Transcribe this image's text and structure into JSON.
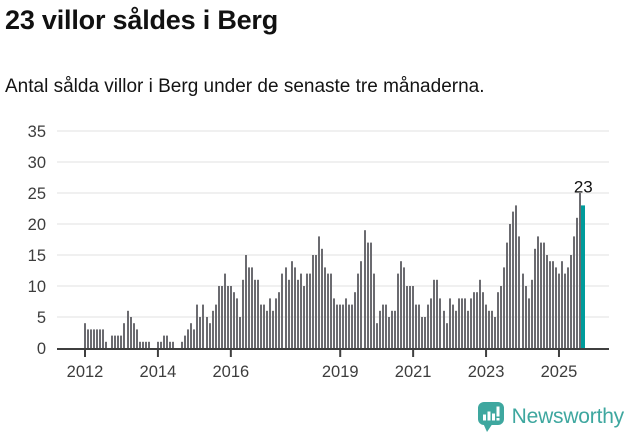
{
  "header": {},
  "chart_data": {
    "type": "bar",
    "title": "23 villor såldes i Berg",
    "subtitle": "Antal sålda villor i Berg under de senaste tre månaderna.",
    "frequency": "monthly",
    "start": "2012-01",
    "end": "2025-09",
    "values": [
      4,
      3,
      3,
      3,
      3,
      3,
      3,
      1,
      0,
      2,
      2,
      2,
      2,
      4,
      6,
      5,
      4,
      3,
      1,
      1,
      1,
      1,
      0,
      0,
      1,
      1,
      2,
      2,
      1,
      1,
      0,
      0,
      1,
      2,
      3,
      4,
      3,
      7,
      5,
      7,
      5,
      4,
      6,
      7,
      10,
      10,
      12,
      10,
      10,
      9,
      8,
      5,
      11,
      15,
      13,
      13,
      11,
      11,
      7,
      7,
      6,
      8,
      6,
      8,
      9,
      12,
      13,
      11,
      14,
      13,
      11,
      12,
      10,
      12,
      12,
      15,
      15,
      18,
      16,
      13,
      12,
      12,
      8,
      7,
      7,
      7,
      8,
      7,
      7,
      9,
      12,
      14,
      19,
      17,
      17,
      12,
      4,
      6,
      7,
      7,
      5,
      6,
      6,
      12,
      14,
      13,
      10,
      10,
      10,
      7,
      7,
      5,
      5,
      7,
      8,
      11,
      11,
      8,
      6,
      4,
      8,
      7,
      6,
      8,
      8,
      8,
      6,
      8,
      9,
      9,
      11,
      9,
      7,
      6,
      6,
      5,
      9,
      10,
      13,
      17,
      20,
      22,
      23,
      18,
      12,
      10,
      8,
      11,
      16,
      18,
      17,
      17,
      15,
      14,
      14,
      13,
      12,
      14,
      12,
      13,
      15,
      18,
      21,
      25,
      23
    ],
    "highlight": {
      "position": "last",
      "value": 23,
      "label": "23"
    },
    "x_axis": {
      "start_year": 2012,
      "tick_years": [
        2012,
        2014,
        2016,
        2019,
        2021,
        2023,
        2025
      ],
      "tick_labels": [
        "2012",
        "2014",
        "2016",
        "2019",
        "2021",
        "2023",
        "2025"
      ]
    },
    "y_axis": {
      "ticks": [
        0,
        5,
        10,
        15,
        20,
        25,
        30,
        35
      ],
      "lim": [
        0,
        35
      ]
    },
    "grid": "horizontal",
    "legend": "none",
    "colors": {
      "bar": "#6b6b70",
      "highlight": "#009b9b",
      "grid": "#e6e6e6",
      "axis": "#3f3f3f",
      "tick_text": "#3d3d3d",
      "annotation_text": "#111111"
    }
  },
  "footer": {
    "brand": "Newsworthy",
    "brand_color": "#3EA79F",
    "icon": "newsworthy-bubble-chart-icon"
  }
}
